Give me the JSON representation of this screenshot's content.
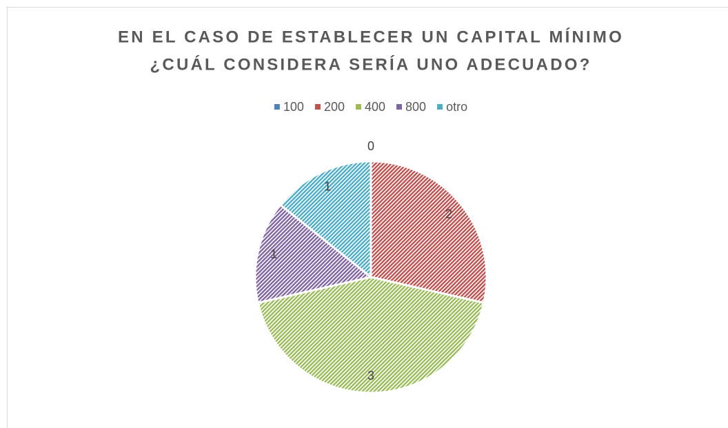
{
  "chart_data": {
    "type": "pie",
    "title": [
      "EN EL CASO DE ESTABLECER UN CAPITAL MÍNIMO",
      "¿CUÁL CONSIDERA SERÍA UNO ADECUADO?"
    ],
    "categories": [
      "100",
      "200",
      "400",
      "800",
      "otro"
    ],
    "values": [
      0,
      2,
      3,
      1,
      1
    ],
    "colors": [
      "#4f81bd",
      "#c0504d",
      "#9bbb59",
      "#8064a2",
      "#4bacc6"
    ],
    "legend": "top"
  }
}
